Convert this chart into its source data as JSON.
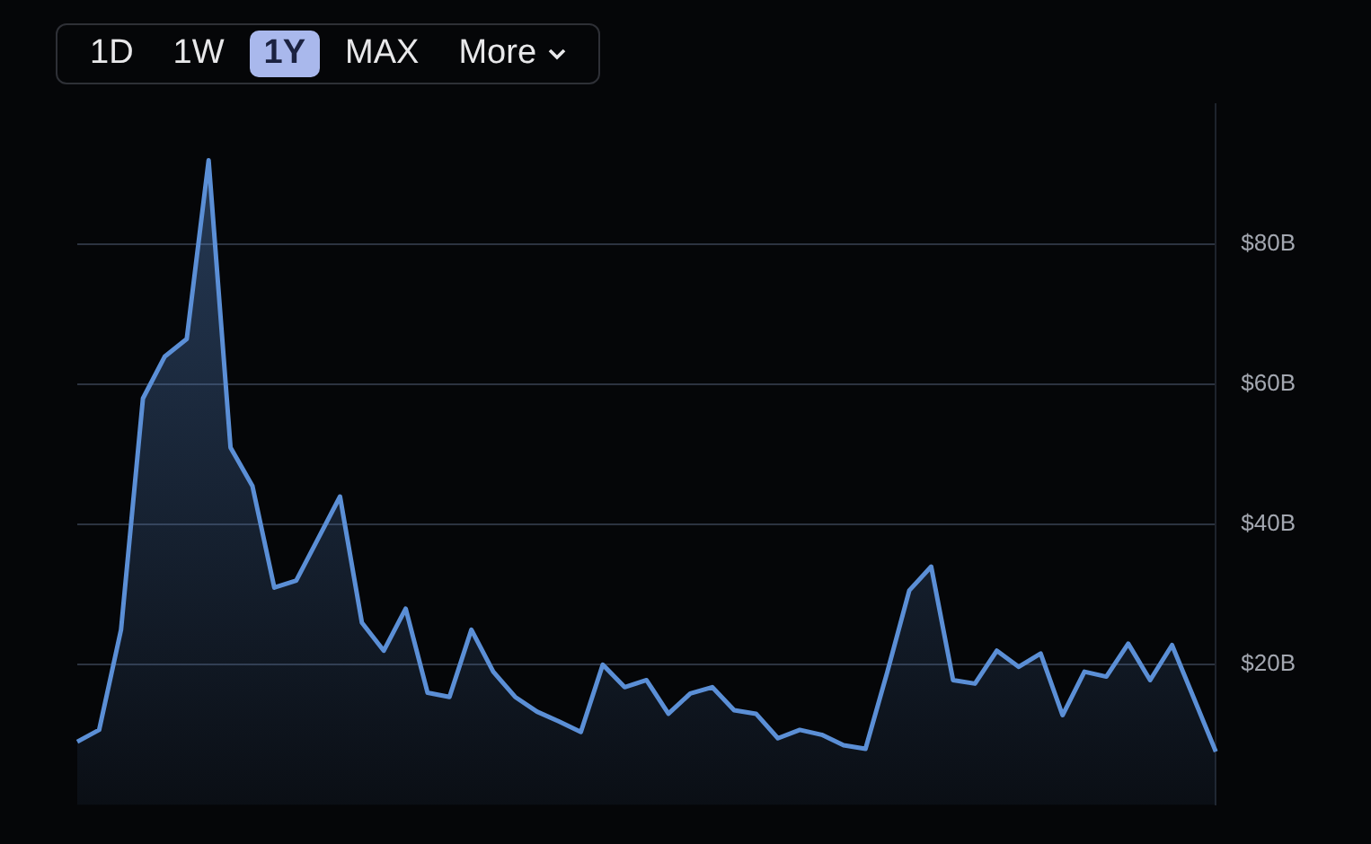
{
  "chart_data": {
    "type": "area",
    "annotations": [
      "1D",
      "1W",
      "1Y",
      "MAX",
      "More"
    ],
    "categories": [
      null,
      null,
      null,
      null,
      null,
      null,
      null,
      null,
      null,
      null,
      null,
      null,
      null,
      null,
      null,
      null,
      null,
      null,
      null,
      null,
      null,
      null,
      null,
      null,
      null,
      null,
      null,
      null,
      null,
      null,
      null,
      null,
      null,
      null,
      null,
      null,
      null,
      null,
      null,
      null,
      null,
      null,
      null,
      null,
      null,
      null,
      null,
      null,
      null,
      null,
      null,
      null,
      null
    ],
    "values": [
      9,
      10.7,
      25,
      58,
      64,
      66.5,
      92,
      51,
      45.5,
      31,
      32,
      38,
      44,
      26,
      22,
      28,
      16,
      15.4,
      25,
      19,
      15.4,
      13.3,
      11.9,
      10.4,
      20,
      16.8,
      17.8,
      13,
      15.9,
      16.8,
      13.5,
      13,
      9.5,
      10.7,
      10,
      8.5,
      8,
      19,
      30.6,
      34,
      17.8,
      17.3,
      22,
      19.7,
      21.6,
      12.8,
      19,
      18.3,
      23,
      17.8,
      22.8,
      15.2,
      7.6
    ],
    "color": "#5b8fd6",
    "ylim": [
      0,
      100
    ],
    "yticks": [
      {
        "value": 20,
        "label": "$20B"
      },
      {
        "value": 40,
        "label": "$40B"
      },
      {
        "value": 60,
        "label": "$60B"
      },
      {
        "value": 80,
        "label": "$80B"
      }
    ],
    "grid": "y",
    "legend": false
  }
}
